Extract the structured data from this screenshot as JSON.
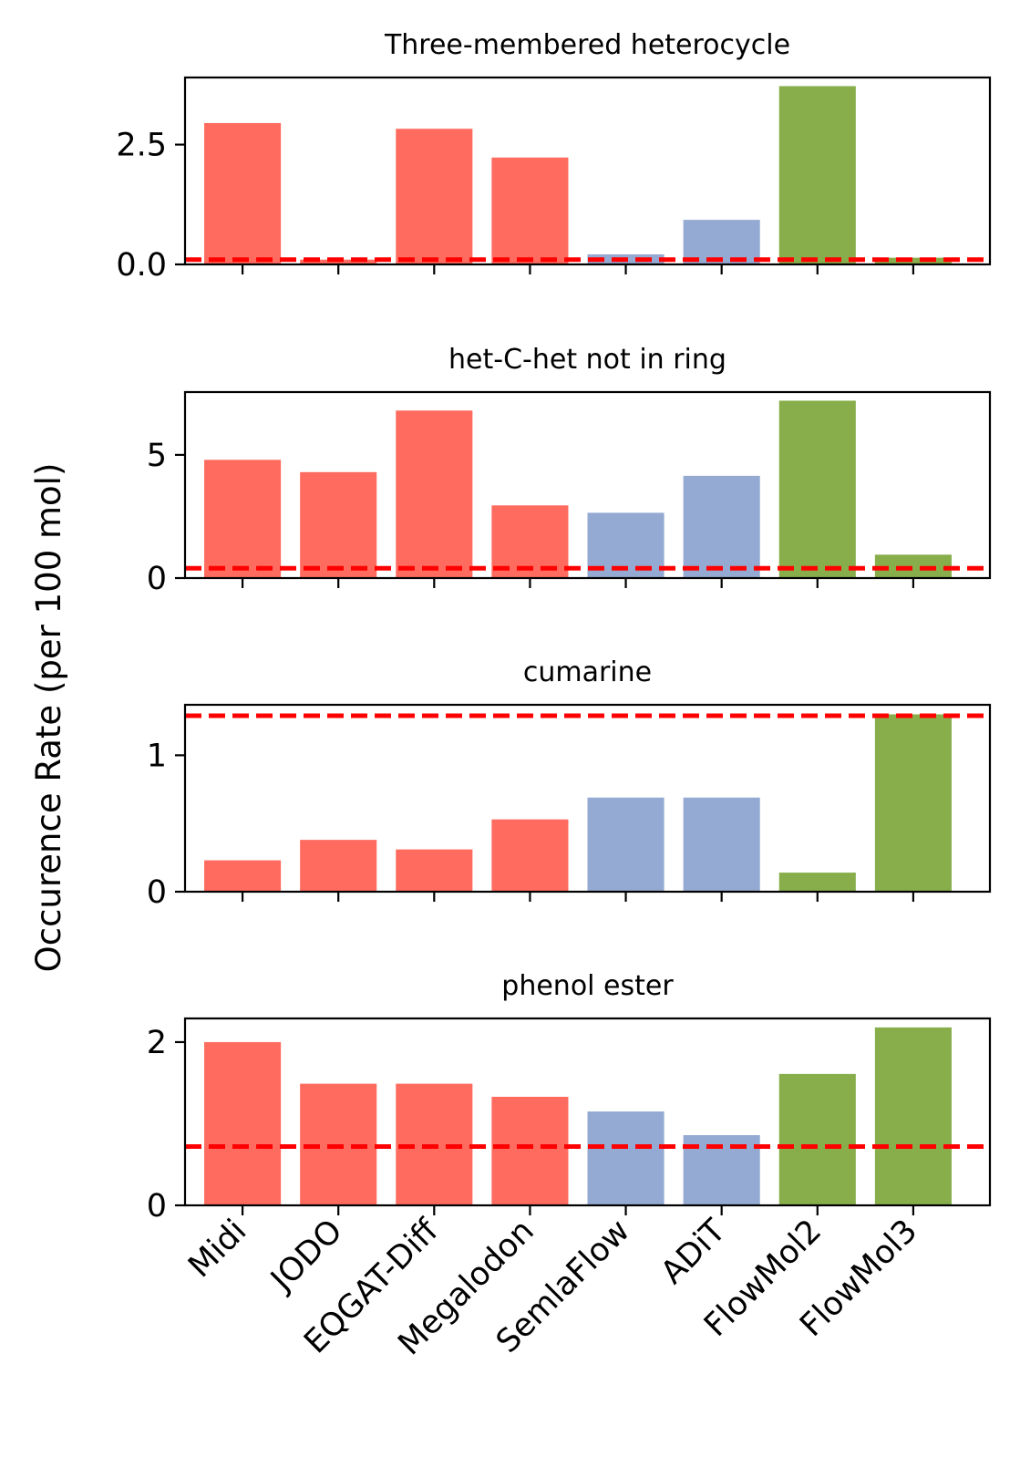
{
  "figure": {
    "ylabel": "Occurence Rate (per 100 mol)"
  },
  "colors": {
    "red": "#ff6b5f",
    "blue": "#94aad2",
    "green": "#88ae4c",
    "reference_line": "#ff0000"
  },
  "chart_data": [
    {
      "type": "bar",
      "title": "Three-membered heterocycle",
      "categories": [
        "Midi",
        "JODO",
        "EQGAT-Diff",
        "Megalodon",
        "SemlaFlow",
        "ADiT",
        "FlowMol2",
        "FlowMol3"
      ],
      "values": [
        2.95,
        0.1,
        2.83,
        2.23,
        0.21,
        0.93,
        3.72,
        0.14
      ],
      "bar_colors": [
        "red",
        "red",
        "red",
        "red",
        "blue",
        "blue",
        "green",
        "green"
      ],
      "reference_value": 0.1,
      "ylim": [
        0,
        3.9
      ],
      "yticks": [
        0.0,
        2.5
      ],
      "ytick_labels": [
        "0.0",
        "2.5"
      ],
      "show_xtick_labels": false
    },
    {
      "type": "bar",
      "title": "het-C-het not in ring",
      "categories": [
        "Midi",
        "JODO",
        "EQGAT-Diff",
        "Megalodon",
        "SemlaFlow",
        "ADiT",
        "FlowMol2",
        "FlowMol3"
      ],
      "values": [
        4.8,
        4.3,
        6.8,
        2.95,
        2.65,
        4.15,
        7.2,
        0.95
      ],
      "bar_colors": [
        "red",
        "red",
        "red",
        "red",
        "blue",
        "blue",
        "green",
        "green"
      ],
      "reference_value": 0.4,
      "ylim": [
        0,
        7.55
      ],
      "yticks": [
        0,
        5
      ],
      "ytick_labels": [
        "0",
        "5"
      ],
      "show_xtick_labels": false
    },
    {
      "type": "bar",
      "title": "cumarine",
      "categories": [
        "Midi",
        "JODO",
        "EQGAT-Diff",
        "Megalodon",
        "SemlaFlow",
        "ADiT",
        "FlowMol2",
        "FlowMol3"
      ],
      "values": [
        0.23,
        0.38,
        0.31,
        0.53,
        0.69,
        0.69,
        0.14,
        1.3
      ],
      "bar_colors": [
        "red",
        "red",
        "red",
        "red",
        "blue",
        "blue",
        "green",
        "green"
      ],
      "reference_value": 1.29,
      "ylim": [
        0,
        1.37
      ],
      "yticks": [
        0,
        1
      ],
      "ytick_labels": [
        "0",
        "1"
      ],
      "show_xtick_labels": false
    },
    {
      "type": "bar",
      "title": "phenol ester",
      "categories": [
        "Midi",
        "JODO",
        "EQGAT-Diff",
        "Megalodon",
        "SemlaFlow",
        "ADiT",
        "FlowMol2",
        "FlowMol3"
      ],
      "values": [
        2.0,
        1.49,
        1.49,
        1.33,
        1.15,
        0.86,
        1.61,
        2.18
      ],
      "bar_colors": [
        "red",
        "red",
        "red",
        "red",
        "blue",
        "blue",
        "green",
        "green"
      ],
      "reference_value": 0.72,
      "ylim": [
        0,
        2.29
      ],
      "yticks": [
        0,
        2
      ],
      "ytick_labels": [
        "0",
        "2"
      ],
      "show_xtick_labels": true
    }
  ]
}
